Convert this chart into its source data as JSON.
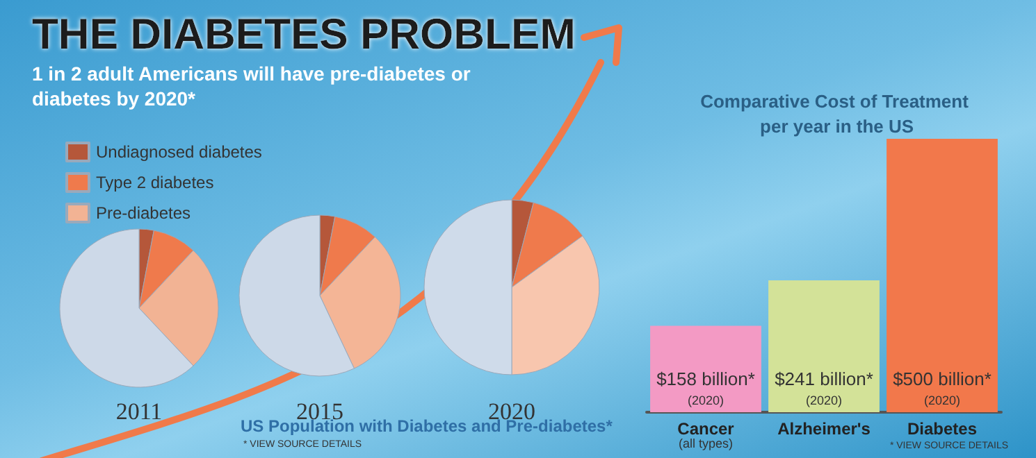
{
  "chart_data": [
    {
      "type": "other",
      "title": "THE DIABETES PROBLEM",
      "subtitle": "1 in 2 adult Americans will have pre-diabetes or diabetes by 2020*"
    },
    {
      "type": "pie",
      "categories": [
        "Undiagnosed diabetes",
        "Type 2 diabetes",
        "Pre-diabetes",
        null
      ],
      "legend": "top left",
      "xlabel": "US Population with Diabetes and Pre-diabetes*",
      "annotations": [
        "* VIEW SOURCE DETAILS"
      ],
      "series": [
        {
          "name": "2011",
          "colors": [
            "#b5573a",
            "#ef7a4c",
            "#f2b394",
            "#cdd9e8"
          ],
          "values": [
            3,
            9,
            26,
            62
          ]
        },
        {
          "name": "2015",
          "colors": [
            "#b5573a",
            "#ef7a4c",
            "#f4b596",
            "#cdd9e8"
          ],
          "values": [
            3,
            9,
            31,
            57
          ]
        },
        {
          "name": "2020",
          "colors": [
            "#b5573a",
            "#ef7a4c",
            "#f8c6ae",
            "#cfdbea"
          ],
          "values": [
            4,
            11,
            35,
            50
          ]
        }
      ]
    },
    {
      "type": "bar",
      "title": "Comparative Cost of Treatment per year in the US",
      "categories": [
        "Cancer\n(all types)",
        "Alzheimer's",
        "Diabetes"
      ],
      "values": [
        158,
        241,
        500
      ],
      "colors": [
        "#f39ac4",
        "#d3e298",
        "#f2784b"
      ],
      "value_labels": [
        "$158 billion*",
        "$241 billion*",
        "$500 billion*"
      ],
      "annotations": [
        "(2020)",
        "(2020)",
        "(2020)",
        "* VIEW SOURCE DETAILS"
      ]
    }
  ]
}
